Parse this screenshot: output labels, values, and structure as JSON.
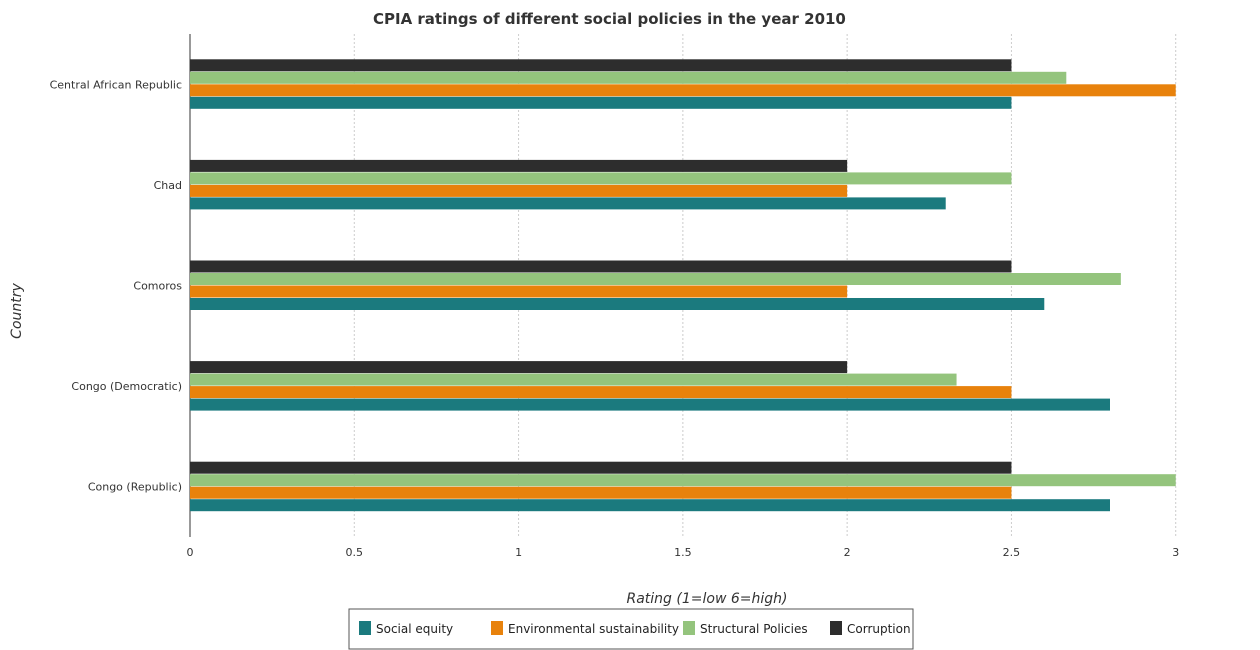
{
  "chart_data": {
    "type": "bar",
    "orientation": "horizontal",
    "title": "CPIA ratings of different social policies in the year 2010",
    "xlabel": "Rating (1=low 6=high)",
    "ylabel": "Country",
    "xlim": [
      0,
      3.15
    ],
    "xticks": [
      "0",
      "0.5",
      "1",
      "1.5",
      "2",
      "2.5",
      "3"
    ],
    "categories": [
      "Central African Republic",
      "Chad",
      "Comoros",
      "Congo (Democratic)",
      "Congo (Republic)"
    ],
    "series": [
      {
        "name": "Social equity",
        "color": "#1b7a7e",
        "values": [
          2.5,
          2.3,
          2.6,
          2.8,
          2.8
        ]
      },
      {
        "name": "Environmental sustainability",
        "color": "#e8820c",
        "values": [
          3.0,
          2.0,
          2.0,
          2.5,
          2.5
        ]
      },
      {
        "name": "Structural Policies",
        "color": "#94c47d",
        "values": [
          2.667,
          2.5,
          2.833,
          2.333,
          3.0
        ]
      },
      {
        "name": "Corruption",
        "color": "#2d2d2d",
        "values": [
          2.5,
          2.0,
          2.5,
          2.0,
          2.5
        ]
      }
    ],
    "grid": true,
    "legend_position": "bottom"
  }
}
